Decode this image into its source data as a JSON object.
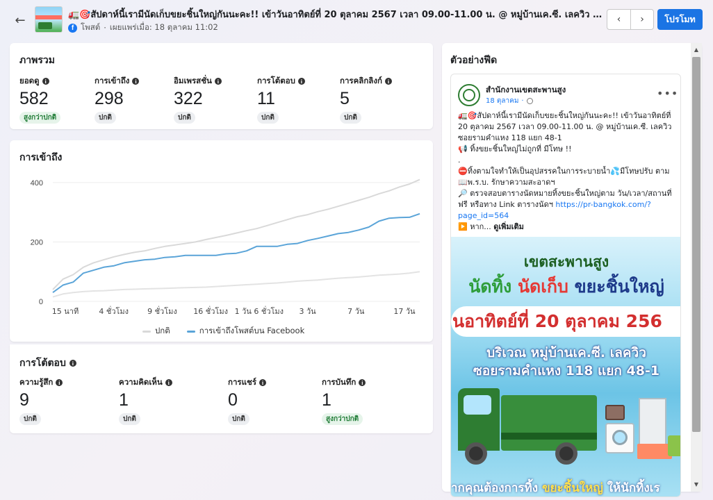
{
  "header": {
    "title": "🚛🎯สัปดาห์นี้เรามีนัดเก็บขยะชิ้นใหญ่กันนะคะ!! เข้าวันอาทิตย์ที่ 20 ตุลาคม 2567 เวลา 09.00-11.00 น. @ หมู่บ้านเค.ซี. เลควิว ซอ...",
    "post_type": "โพสต์",
    "published": "เผยแพร่เมื่อ: 18 ตุลาคม 11:02",
    "promote_label": "โปรโมท"
  },
  "overview": {
    "title": "ภาพรวม",
    "metrics": [
      {
        "label": "ยอดดู",
        "value": "582",
        "badge": "สูงกว่าปกติ"
      },
      {
        "label": "การเข้าถึง",
        "value": "298",
        "badge": "ปกติ"
      },
      {
        "label": "อิมเพรสชั่น",
        "value": "322",
        "badge": "ปกติ"
      },
      {
        "label": "การโต้ตอบ",
        "value": "11",
        "badge": "ปกติ"
      },
      {
        "label": "การคลิกลิงก์",
        "value": "5",
        "badge": "ปกติ"
      }
    ]
  },
  "reach": {
    "title": "การเข้าถึง",
    "legend_normal": "ปกติ",
    "legend_fb": "การเข้าถึงโพสต์บน Facebook"
  },
  "chart_data": {
    "type": "line",
    "x_tick_labels": [
      "15 นาที",
      "4 ชั่วโมง",
      "9 ชั่วโมง",
      "16 ชั่วโมง",
      "1 วัน 6 ชั่วโมง",
      "3 วัน",
      "7 วัน",
      "17 วัน"
    ],
    "y_ticks": [
      0,
      200,
      400
    ],
    "ylim": [
      0,
      430
    ],
    "grid": true,
    "legend_placement": "bottom",
    "colors": {
      "fb": "#5aa4d8",
      "normal_upper": "#d9d9d9",
      "normal_lower": "#e3e3e3"
    },
    "x": [
      0,
      1,
      2,
      3,
      4,
      5,
      6,
      7,
      8,
      9,
      10,
      11,
      12,
      13,
      14,
      15,
      16,
      17,
      18,
      19,
      20,
      21,
      22,
      23,
      24,
      25,
      26,
      27,
      28,
      29,
      30,
      31,
      32,
      33,
      34,
      35,
      36
    ],
    "series": [
      {
        "name": "การเข้าถึงโพสต์บน Facebook",
        "values": [
          30,
          55,
          65,
          95,
          105,
          115,
          120,
          130,
          135,
          140,
          142,
          148,
          150,
          155,
          155,
          155,
          155,
          160,
          162,
          170,
          185,
          185,
          185,
          192,
          195,
          205,
          212,
          220,
          228,
          232,
          240,
          250,
          270,
          280,
          282,
          283,
          295
        ]
      },
      {
        "name": "ปกติ",
        "values": [
          40,
          75,
          90,
          115,
          130,
          140,
          150,
          158,
          165,
          170,
          178,
          185,
          190,
          195,
          200,
          208,
          215,
          222,
          230,
          238,
          245,
          255,
          265,
          275,
          285,
          292,
          302,
          310,
          320,
          330,
          340,
          350,
          362,
          372,
          385,
          395,
          410
        ]
      },
      {
        "name": "ปกติ",
        "values": [
          15,
          25,
          30,
          33,
          35,
          36,
          38,
          40,
          41,
          42,
          43,
          44,
          45,
          46,
          47,
          48,
          50,
          52,
          54,
          56,
          58,
          60,
          62,
          65,
          68,
          70,
          72,
          75,
          78,
          80,
          82,
          85,
          88,
          90,
          92,
          95,
          100
        ]
      }
    ]
  },
  "engagement": {
    "title": "การโต้ตอบ",
    "metrics": [
      {
        "label": "ความรู้สึก",
        "value": "9",
        "badge": "ปกติ"
      },
      {
        "label": "ความคิดเห็น",
        "value": "1",
        "badge": "ปกติ"
      },
      {
        "label": "การแชร์",
        "value": "0",
        "badge": "ปกติ"
      },
      {
        "label": "การบันทึก",
        "value": "1",
        "badge": "สูงกว่าปกติ"
      }
    ]
  },
  "preview": {
    "title": "ตัวอย่างฟีด",
    "page_name": "สำนักงานเขตสะพานสูง",
    "date": "18 ตุลาคม",
    "lines": [
      "🚛🎯สัปดาห์นี้เรามีนัดเก็บขยะชิ้นใหญ่กันนะคะ!! เข้าวันอาทิตย์ที่",
      "20 ตุลาคม 2567 เวลา 09.00-11.00 น. @ หมู่บ้านเค.ซี. เลควิว",
      "ซอยรามคำแหง 118 แยก 48-1",
      "📢 ทิ้งขยะชิ้นใหญ่ไม่ถูกที่ มีโทษ !!",
      ".",
      "⛔ทิ้งตามใจทำให้เป็นอุปสรรคในการระบายน้ำ💦มีโทษปรับ ตาม",
      "📖พ.ร.บ. รักษาความสะอาดฯ",
      "🔎 ตรวจสอบตารางนัดหมายทิ้งขยะชิ้นใหญ่ตาม วัน/เวลา/สถานที่",
      "ฟรี หรือทาง Link ตารางนัดฯ"
    ],
    "link_part1": "https://pr-bangkok.com/?",
    "link_part2": "page_id=564",
    "tail": "▶️ หาก...",
    "see_more": "ดูเพิ่มเติม",
    "image": {
      "line1": "เขตสะพานสูง",
      "line2_a": "นัดทิ้ง",
      "line2_b": "นัดเก็บ",
      "line2_c": "ขยะชิ้นใหญ่",
      "banner": "นอาทิตย์ที่ 20 ตุลาคม 256",
      "line3": "บริเวณ หมู่บ้านเค.ซี. เลควิว",
      "line4": "ซอยรามคำแหง 118 แยก 48-1",
      "footer_a": "ากคุณต้องการทิ้ง",
      "footer_b": "ขยะชิ้นใหญ่",
      "footer_c": "ให้นักทิ้งเร"
    }
  }
}
